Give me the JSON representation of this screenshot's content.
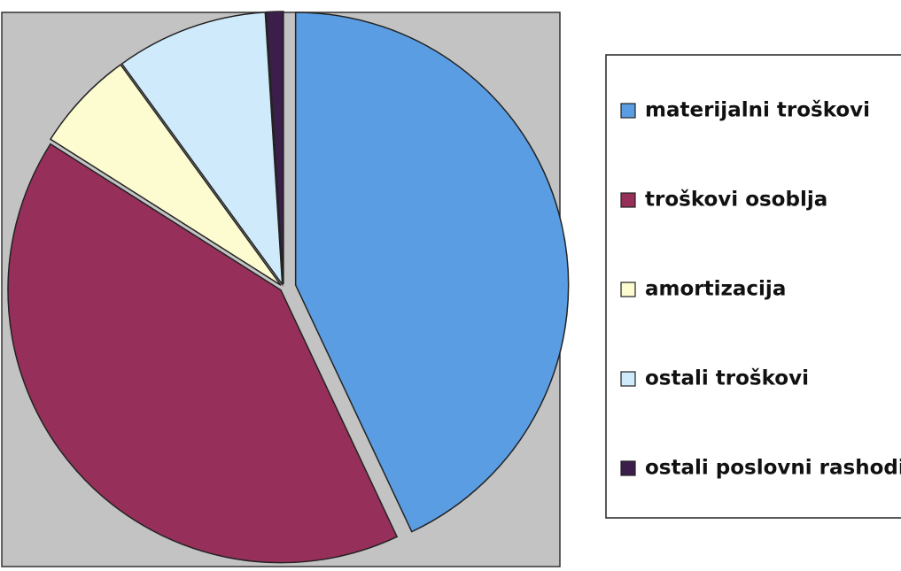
{
  "chart_data": {
    "type": "pie",
    "categories": [
      "materijalni troškovi",
      "troškovi osoblja",
      "amortizacija",
      "ostali troškovi",
      "ostali poslovni rashodi"
    ],
    "values": [
      43,
      41,
      6,
      9,
      1
    ],
    "colors": [
      "#5a9de2",
      "#96305a",
      "#fdfbd0",
      "#cfeafb",
      "#3b1f4a"
    ],
    "legend": "right"
  }
}
